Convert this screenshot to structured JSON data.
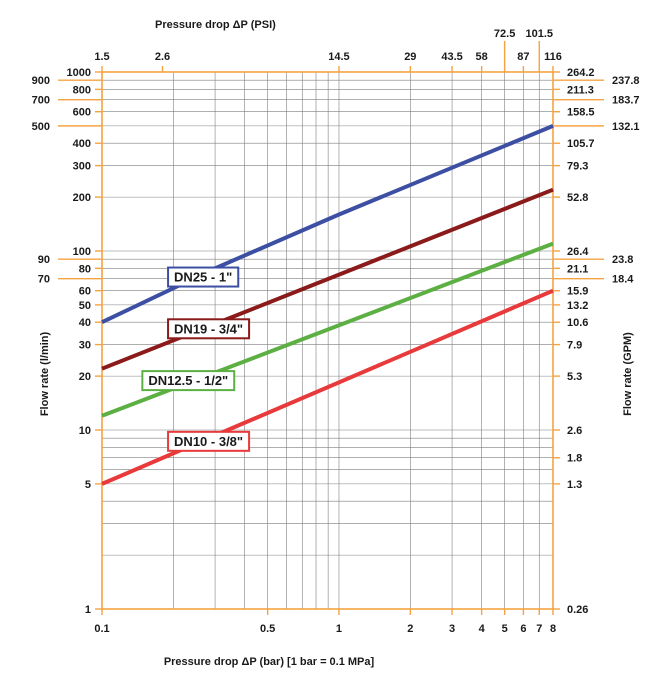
{
  "chart_data": {
    "type": "line",
    "title": "",
    "xlabel": "Pressure drop ΔP (bar) [1 bar = 0.1 MPa]",
    "x2label": "Pressure drop ΔP (PSI)",
    "ylabel": "Flow rate (l/min)",
    "y2label": "Flow rate (GPM)",
    "x_scale": "log",
    "y_scale": "log",
    "xlim": [
      0.1,
      8
    ],
    "ylim": [
      1,
      1000
    ],
    "grid": true,
    "legend": "inline labels on curves",
    "colors": {
      "axis": "#f4a340",
      "grid": "#7f7f7f",
      "text": "#1a1a1a",
      "DN25": "#3c4fa3",
      "DN19": "#8b1a1a",
      "DN12_5": "#5cb043",
      "DN10": "#e8393b"
    },
    "x_ticks": [
      {
        "v": 0.1,
        "t": "0.1"
      },
      {
        "v": 0.5,
        "t": "0.5"
      },
      {
        "v": 1,
        "t": "1"
      },
      {
        "v": 2,
        "t": "2"
      },
      {
        "v": 3,
        "t": "3"
      },
      {
        "v": 4,
        "t": "4"
      },
      {
        "v": 5,
        "t": "5"
      },
      {
        "v": 6,
        "t": "6"
      },
      {
        "v": 7,
        "t": "7"
      },
      {
        "v": 8,
        "t": "8"
      }
    ],
    "x_grid": [
      0.1,
      0.2,
      0.3,
      0.4,
      0.5,
      0.6,
      0.7,
      0.8,
      0.9,
      1,
      2,
      3,
      4,
      5,
      6,
      7,
      8
    ],
    "x2_ticks_low": [
      {
        "v": 0.1,
        "t": "1.5"
      },
      {
        "v": 0.18,
        "t": "2.6"
      },
      {
        "v": 1.0,
        "t": "14.5"
      },
      {
        "v": 2.0,
        "t": "29"
      },
      {
        "v": 3.0,
        "t": "43.5"
      },
      {
        "v": 4.0,
        "t": "58"
      },
      {
        "v": 6.0,
        "t": "87"
      },
      {
        "v": 8.0,
        "t": "116"
      }
    ],
    "x2_ticks_high": [
      {
        "v": 5.0,
        "t": "72.5"
      },
      {
        "v": 7.0,
        "t": "101.5"
      }
    ],
    "y_ticks": [
      {
        "v": 1000,
        "t": "1000"
      },
      {
        "v": 800,
        "t": "800"
      },
      {
        "v": 600,
        "t": "600"
      },
      {
        "v": 400,
        "t": "400"
      },
      {
        "v": 300,
        "t": "300"
      },
      {
        "v": 200,
        "t": "200"
      },
      {
        "v": 100,
        "t": "100"
      },
      {
        "v": 80,
        "t": "80"
      },
      {
        "v": 60,
        "t": "60"
      },
      {
        "v": 50,
        "t": "50"
      },
      {
        "v": 40,
        "t": "40"
      },
      {
        "v": 30,
        "t": "30"
      },
      {
        "v": 20,
        "t": "20"
      },
      {
        "v": 10,
        "t": "10"
      },
      {
        "v": 5,
        "t": "5"
      },
      {
        "v": 1,
        "t": "1"
      }
    ],
    "y_ticks_outer": [
      {
        "v": 900,
        "t": "900"
      },
      {
        "v": 700,
        "t": "700"
      },
      {
        "v": 500,
        "t": "500"
      },
      {
        "v": 90,
        "t": "90"
      },
      {
        "v": 70,
        "t": "70"
      }
    ],
    "y_grid": [
      1,
      2,
      3,
      4,
      5,
      6,
      7,
      8,
      9,
      10,
      20,
      30,
      40,
      50,
      60,
      70,
      80,
      90,
      100,
      200,
      300,
      400,
      500,
      600,
      700,
      800,
      900,
      1000
    ],
    "y2_ticks": [
      {
        "v": 1000,
        "t": "264.2"
      },
      {
        "v": 800,
        "t": "211.3"
      },
      {
        "v": 600,
        "t": "158.5"
      },
      {
        "v": 400,
        "t": "105.7"
      },
      {
        "v": 300,
        "t": "79.3"
      },
      {
        "v": 200,
        "t": "52.8"
      },
      {
        "v": 100,
        "t": "26.4"
      },
      {
        "v": 80,
        "t": "21.1"
      },
      {
        "v": 60,
        "t": "15.9"
      },
      {
        "v": 50,
        "t": "13.2"
      },
      {
        "v": 40,
        "t": "10.6"
      },
      {
        "v": 30,
        "t": "7.9"
      },
      {
        "v": 20,
        "t": "5.3"
      },
      {
        "v": 10,
        "t": "2.6"
      },
      {
        "v": 7,
        "t": "1.8"
      },
      {
        "v": 5,
        "t": "1.3"
      },
      {
        "v": 1,
        "t": "0.26"
      }
    ],
    "y2_ticks_outer": [
      {
        "v": 900,
        "t": "237.8"
      },
      {
        "v": 700,
        "t": "183.7"
      },
      {
        "v": 500,
        "t": "132.1"
      },
      {
        "v": 90,
        "t": "23.8"
      },
      {
        "v": 70,
        "t": "18.4"
      }
    ],
    "series": [
      {
        "name": "DN25 - 1\"",
        "key": "DN25",
        "x": [
          0.1,
          0.3,
          1,
          8
        ],
        "y": [
          40,
          80,
          160,
          500
        ]
      },
      {
        "name": "DN19 - 3/4\"",
        "key": "DN19",
        "x": [
          0.1,
          8
        ],
        "y": [
          22,
          220
        ]
      },
      {
        "name": "DN12.5 - 1/2\"",
        "key": "DN12_5",
        "x": [
          0.1,
          8
        ],
        "y": [
          12,
          110
        ]
      },
      {
        "name": "DN10 - 3/8\"",
        "key": "DN10",
        "x": [
          0.1,
          8
        ],
        "y": [
          5,
          60
        ]
      }
    ],
    "series_labels": [
      {
        "key": "DN25",
        "text": "DN25 - 1\"",
        "x": 0.19,
        "y": 72
      },
      {
        "key": "DN19",
        "text": "DN19 - 3/4\"",
        "x": 0.19,
        "y": 37
      },
      {
        "key": "DN12_5",
        "text": "DN12.5 - 1/2\"",
        "x": 0.148,
        "y": 19
      },
      {
        "key": "DN10",
        "text": "DN10 - 3/8\"",
        "x": 0.19,
        "y": 8.7
      }
    ]
  }
}
